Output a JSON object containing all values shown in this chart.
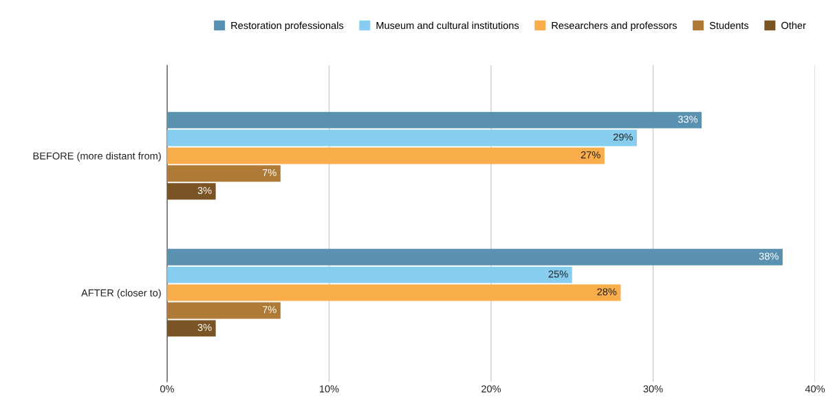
{
  "chart_data": {
    "type": "bar",
    "orientation": "horizontal",
    "categories": [
      "BEFORE (more distant from)",
      "AFTER (closer to)"
    ],
    "series": [
      {
        "name": "Restoration professionals",
        "color": "#5b91b0",
        "values": [
          33,
          38
        ],
        "value_labels": [
          "33%",
          "38%"
        ]
      },
      {
        "name": "Museum and cultural institutions",
        "color": "#87cdf0",
        "values": [
          29,
          25
        ],
        "value_labels": [
          "29%",
          "25%"
        ]
      },
      {
        "name": "Researchers and professors",
        "color": "#f9ad4b",
        "values": [
          27,
          28
        ],
        "value_labels": [
          "27%",
          "28%"
        ]
      },
      {
        "name": "Students",
        "color": "#af7a36",
        "values": [
          7,
          7
        ],
        "value_labels": [
          "7%",
          "7%"
        ]
      },
      {
        "name": "Other",
        "color": "#7b5426",
        "values": [
          3,
          3
        ],
        "value_labels": [
          "3%",
          "3%"
        ]
      }
    ],
    "xlim": [
      0,
      40
    ],
    "xticks": [
      {
        "value": 0,
        "label": "0%"
      },
      {
        "value": 10,
        "label": "10%"
      },
      {
        "value": 20,
        "label": "20%"
      },
      {
        "value": 30,
        "label": "30%"
      },
      {
        "value": 40,
        "label": "40%"
      }
    ],
    "grid": "x",
    "legend": "top right"
  }
}
